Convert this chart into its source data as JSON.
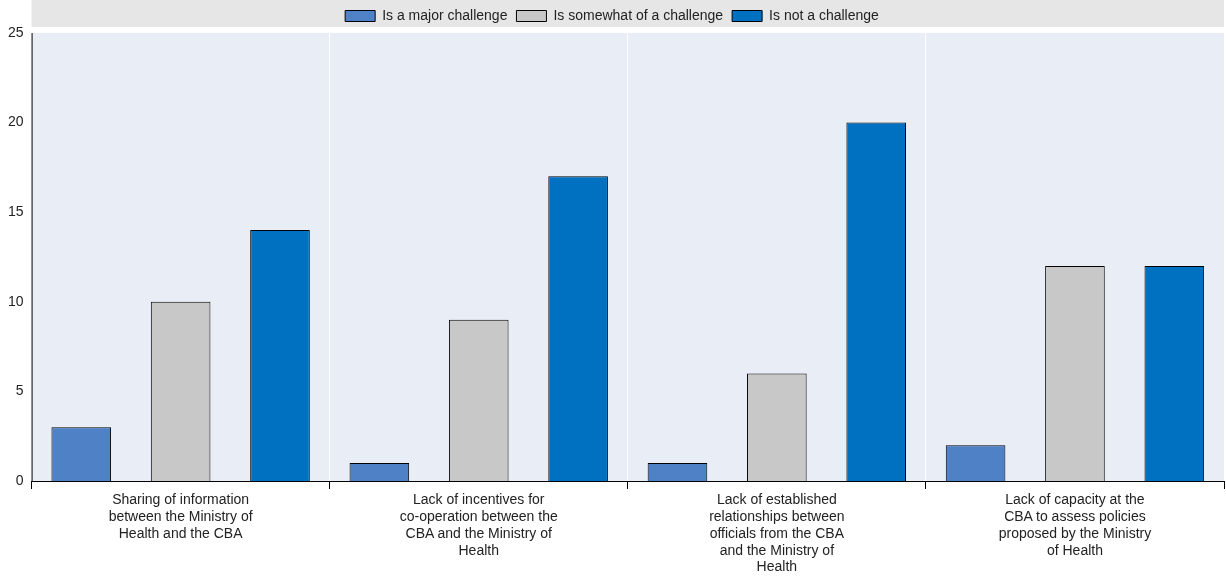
{
  "chart_data": {
    "type": "bar",
    "categories": [
      "Sharing of information between the Ministry of Health and the CBA",
      "Lack of incentives for co-operation between the CBA and the Ministry of Health",
      "Lack of established relationships between officials from the CBA and the Ministry of Health",
      "Lack of capacity at the CBA to assess policies proposed by the Ministry of Health"
    ],
    "series": [
      {
        "name": "Is a major challenge",
        "color": "#4f81c7",
        "values": [
          3,
          1,
          1,
          2
        ]
      },
      {
        "name": "Is somewhat of a challenge",
        "color": "#c8c8c8",
        "values": [
          10,
          9,
          6,
          12
        ]
      },
      {
        "name": "Is not a challenge",
        "color": "#0070c0",
        "values": [
          14,
          17,
          20,
          12
        ]
      }
    ],
    "ylim": [
      0,
      25
    ],
    "yticks": [
      0,
      5,
      10,
      15,
      20,
      25
    ],
    "grid": "x",
    "legend": "top"
  }
}
